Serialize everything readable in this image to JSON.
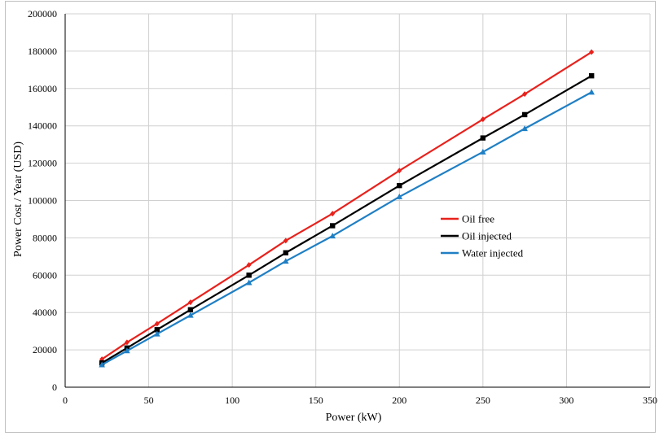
{
  "chart_data": {
    "type": "line",
    "title": "",
    "xlabel": "Power (kW)",
    "ylabel": "Power Cost / Year (USD)",
    "xlim": [
      0,
      350
    ],
    "ylim": [
      0,
      200000
    ],
    "xticks": [
      0,
      50,
      100,
      150,
      200,
      250,
      300,
      350
    ],
    "yticks": [
      0,
      20000,
      40000,
      60000,
      80000,
      100000,
      120000,
      140000,
      160000,
      180000,
      200000
    ],
    "grid": true,
    "legend_position": "center-right",
    "x": [
      22,
      37,
      55,
      75,
      110,
      132,
      160,
      200,
      250,
      275,
      315
    ],
    "series": [
      {
        "name": "Oil free",
        "color": "#e8211c",
        "marker": "diamond",
        "values": [
          15000,
          24000,
          34000,
          45500,
          65500,
          78500,
          93000,
          116000,
          143500,
          157000,
          179500
        ]
      },
      {
        "name": "Oil injected",
        "color": "#000000",
        "marker": "square",
        "values": [
          13000,
          21000,
          30800,
          41500,
          60000,
          72000,
          86500,
          108000,
          133500,
          146000,
          166800
        ]
      },
      {
        "name": "Water injected",
        "color": "#1f7fc4",
        "marker": "triangle",
        "values": [
          12000,
          19500,
          28500,
          38500,
          56000,
          67500,
          81000,
          102000,
          126000,
          138500,
          158000
        ]
      }
    ]
  }
}
